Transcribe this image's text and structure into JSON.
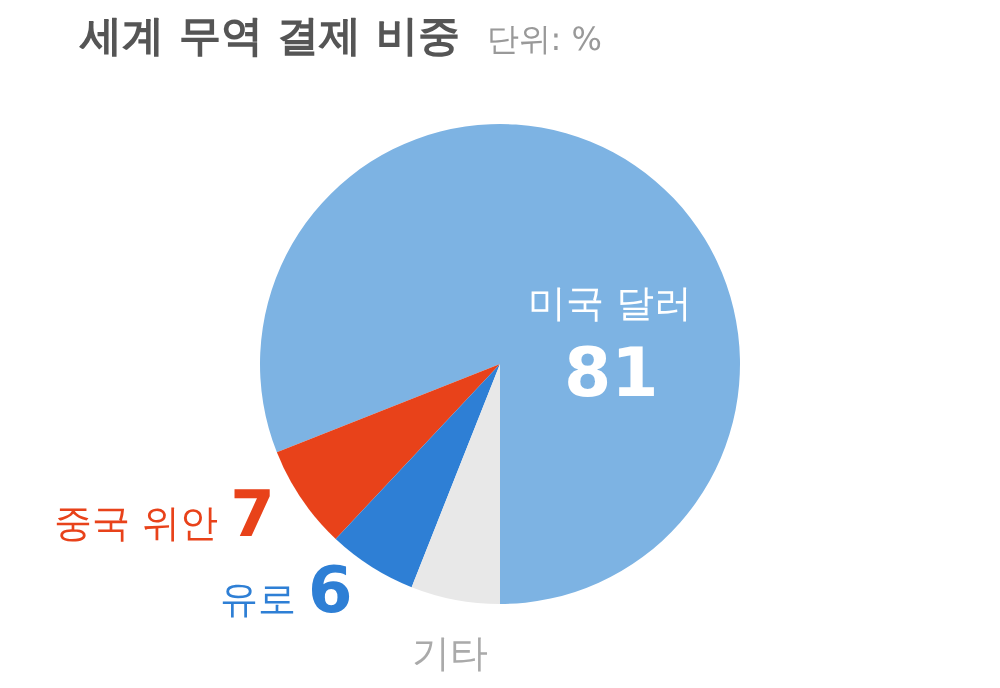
{
  "chart_data": {
    "type": "pie",
    "title": "세계 무역 결제 비중",
    "subtitle": "단위: %",
    "categories": [
      "미국 달러",
      "중국 위안",
      "유로",
      "기타"
    ],
    "values": [
      81,
      7,
      6,
      6
    ],
    "value_labels": [
      "81",
      "7",
      "6",
      null
    ],
    "colors": [
      "#7db3e3",
      "#e8421a",
      "#2e7fd5",
      "#e8e8e8"
    ],
    "legend": false
  }
}
